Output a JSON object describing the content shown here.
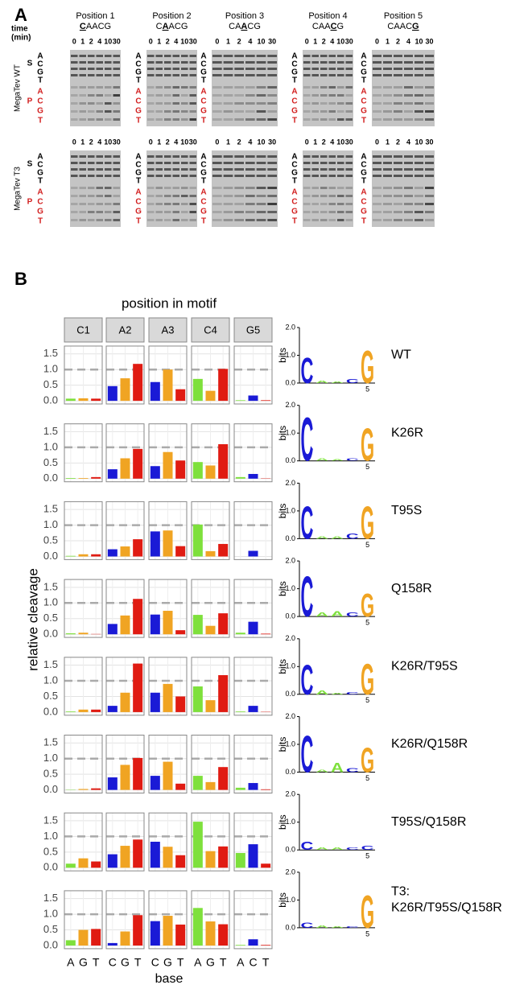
{
  "panel_a": {
    "label": "A",
    "time_label": [
      "time",
      "(min)"
    ],
    "lanes": [
      0,
      1,
      2,
      4,
      10,
      30
    ],
    "substrate_label": "S",
    "product_label": "P",
    "ladder": [
      "A",
      "C",
      "G",
      "T"
    ],
    "row_labels": [
      "MegaTev WT",
      "MegaTev T3"
    ],
    "positions": [
      {
        "title": "Position 1",
        "motif": [
          "C",
          "A",
          "A",
          "C",
          "G"
        ],
        "emphasis": 0
      },
      {
        "title": "Position 2",
        "motif": [
          "C",
          "A",
          "A",
          "C",
          "G"
        ],
        "emphasis": 1
      },
      {
        "title": "Position 3",
        "motif": [
          "C",
          "A",
          "A",
          "C",
          "G"
        ],
        "emphasis": 2
      },
      {
        "title": "Position 4",
        "motif": [
          "C",
          "A",
          "A",
          "C",
          "G"
        ],
        "emphasis": 3
      },
      {
        "title": "Position 5",
        "motif": [
          "C",
          "A",
          "A",
          "C",
          "G"
        ],
        "emphasis": 4
      }
    ]
  },
  "panel_b": {
    "label": "B",
    "title": "position in motif",
    "ylabel": "relative cleavage",
    "xlabel": "base",
    "facets": [
      {
        "name": "C1",
        "bases": [
          "A",
          "G",
          "T"
        ]
      },
      {
        "name": "A2",
        "bases": [
          "C",
          "G",
          "T"
        ]
      },
      {
        "name": "A3",
        "bases": [
          "C",
          "G",
          "T"
        ]
      },
      {
        "name": "C4",
        "bases": [
          "A",
          "G",
          "T"
        ]
      },
      {
        "name": "G5",
        "bases": [
          "A",
          "C",
          "T"
        ]
      }
    ],
    "base_colors": {
      "A": "#7ee03c",
      "C": "#1a1ad6",
      "G": "#f0a423",
      "T": "#e01b12"
    },
    "ylim": [
      -0.1,
      1.75
    ],
    "yticks": [
      {
        "value": 0,
        "label": "0.0"
      },
      {
        "value": 0.5,
        "label": "0.5"
      },
      {
        "value": 1,
        "label": "1.0"
      },
      {
        "value": 1.5,
        "label": "1.5"
      }
    ],
    "reference_line": 1,
    "logo_ylabel": "bits",
    "logo_ylim": [
      0,
      2
    ],
    "logo_yticks": [
      {
        "value": 0,
        "label": "0.0"
      },
      {
        "value": 1,
        "label": "1.0"
      },
      {
        "value": 2,
        "label": "2.0"
      }
    ],
    "logo_xticks": [
      5
    ],
    "rows": [
      {
        "label": [
          "WT"
        ],
        "values": [
          [
            0.07,
            0.08,
            0.07
          ],
          [
            0.47,
            0.72,
            1.18
          ],
          [
            0.6,
            1.0,
            0.37
          ],
          [
            0.7,
            0.32,
            1.02
          ],
          [
            0.02,
            0.17,
            0.02
          ]
        ],
        "logo": [
          {
            "letter": "C",
            "bits": 0.95
          },
          {
            "letter": "A",
            "bits": 0.1
          },
          {
            "letter": "A",
            "bits": 0.05
          },
          {
            "letter": "C",
            "bits": 0.15
          },
          {
            "letter": "G",
            "bits": 1.2
          }
        ]
      },
      {
        "label": [
          "K26R"
        ],
        "values": [
          [
            0.02,
            0.02,
            0.05
          ],
          [
            0.3,
            0.65,
            0.95
          ],
          [
            0.4,
            0.85,
            0.58
          ],
          [
            0.53,
            0.42,
            1.1
          ],
          [
            0.05,
            0.15,
            0.01
          ]
        ],
        "logo": [
          {
            "letter": "C",
            "bits": 1.6
          },
          {
            "letter": "A",
            "bits": 0.1
          },
          {
            "letter": "A",
            "bits": 0.05
          },
          {
            "letter": "C",
            "bits": 0.1
          },
          {
            "letter": "G",
            "bits": 1.2
          }
        ]
      },
      {
        "label": [
          "T95S"
        ],
        "values": [
          [
            0.02,
            0.07,
            0.07
          ],
          [
            0.23,
            0.32,
            0.55
          ],
          [
            0.8,
            0.83,
            0.33
          ],
          [
            1.02,
            0.17,
            0.4
          ],
          [
            0.0,
            0.18,
            0.0
          ]
        ],
        "logo": [
          {
            "letter": "C",
            "bits": 1.2
          },
          {
            "letter": "A",
            "bits": 0.1
          },
          {
            "letter": "A",
            "bits": 0.1
          },
          {
            "letter": "C",
            "bits": 0.2
          },
          {
            "letter": "G",
            "bits": 1.2
          }
        ]
      },
      {
        "label": [
          "Q158R"
        ],
        "values": [
          [
            0.03,
            0.05,
            0.01
          ],
          [
            0.33,
            0.6,
            1.13
          ],
          [
            0.63,
            0.75,
            0.13
          ],
          [
            0.62,
            0.27,
            0.67
          ],
          [
            0.05,
            0.4,
            0.02
          ]
        ],
        "logo": [
          {
            "letter": "C",
            "bits": 1.5
          },
          {
            "letter": "A",
            "bits": 0.15
          },
          {
            "letter": "A",
            "bits": 0.2
          },
          {
            "letter": "C",
            "bits": 0.15
          },
          {
            "letter": "G",
            "bits": 0.85
          }
        ]
      },
      {
        "label": [
          "K26R/T95S"
        ],
        "values": [
          [
            0.02,
            0.08,
            0.08
          ],
          [
            0.2,
            0.62,
            1.55
          ],
          [
            0.62,
            0.9,
            0.5
          ],
          [
            0.82,
            0.38,
            1.18
          ],
          [
            0.02,
            0.2,
            0.01
          ]
        ],
        "logo": [
          {
            "letter": "C",
            "bits": 1.1
          },
          {
            "letter": "A",
            "bits": 0.15
          },
          {
            "letter": "A",
            "bits": 0.05
          },
          {
            "letter": "C",
            "bits": 0.1
          },
          {
            "letter": "G",
            "bits": 1.15
          }
        ]
      },
      {
        "label": [
          "K26R/Q158R"
        ],
        "values": [
          [
            0.01,
            0.03,
            0.05
          ],
          [
            0.4,
            0.8,
            1.02
          ],
          [
            0.45,
            0.9,
            0.2
          ],
          [
            0.45,
            0.25,
            0.73
          ],
          [
            0.07,
            0.22,
            0.02
          ]
        ],
        "logo": [
          {
            "letter": "C",
            "bits": 1.35
          },
          {
            "letter": "A",
            "bits": 0.1
          },
          {
            "letter": "A",
            "bits": 0.35
          },
          {
            "letter": "C",
            "bits": 0.15
          },
          {
            "letter": "G",
            "bits": 0.9
          }
        ]
      },
      {
        "label": [
          "T95S/Q158R"
        ],
        "values": [
          [
            0.13,
            0.3,
            0.2
          ],
          [
            0.43,
            0.7,
            0.9
          ],
          [
            0.83,
            0.67,
            0.4
          ],
          [
            1.47,
            0.53,
            0.68
          ],
          [
            0.47,
            0.75,
            0.13
          ]
        ],
        "logo": [
          {
            "letter": "C",
            "bits": 0.3
          },
          {
            "letter": "A",
            "bits": 0.1
          },
          {
            "letter": "A",
            "bits": 0.1
          },
          {
            "letter": "C",
            "bits": 0.1
          },
          {
            "letter": "C",
            "bits": 0.15
          }
        ]
      },
      {
        "label": [
          "T3:",
          "K26R/T95S/Q158R"
        ],
        "values": [
          [
            0.17,
            0.5,
            0.53
          ],
          [
            0.08,
            0.45,
            0.97
          ],
          [
            0.78,
            0.95,
            0.67
          ],
          [
            1.2,
            0.77,
            0.68
          ],
          [
            0.02,
            0.2,
            0.02
          ]
        ],
        "logo": [
          {
            "letter": "C",
            "bits": 0.2
          },
          {
            "letter": "A",
            "bits": 0.1
          },
          {
            "letter": "A",
            "bits": 0.05
          },
          {
            "letter": "C",
            "bits": 0.05
          },
          {
            "letter": "G",
            "bits": 1.2
          }
        ]
      }
    ]
  }
}
